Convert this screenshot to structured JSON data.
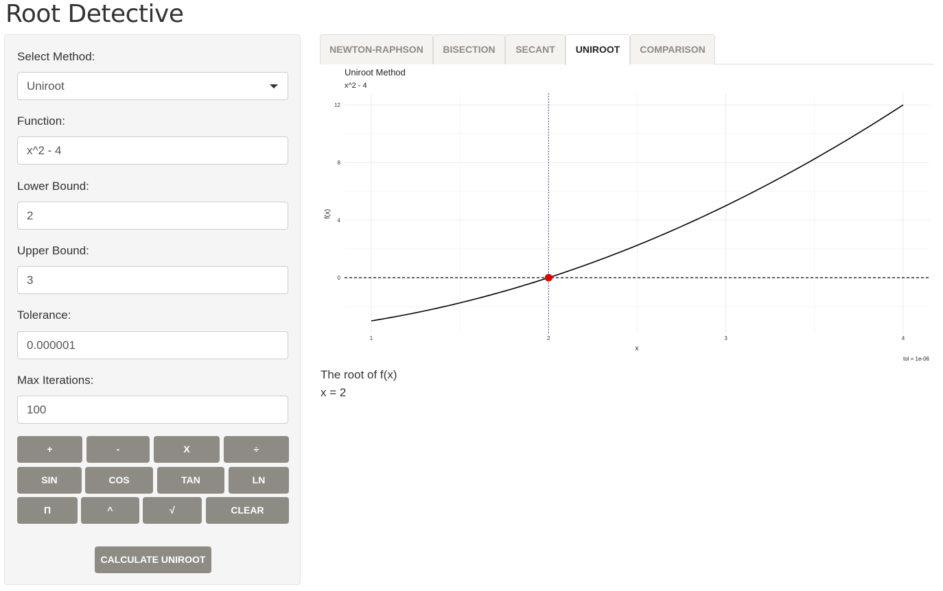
{
  "app": {
    "title": "Root Detective"
  },
  "sidebar": {
    "method_label": "Select Method:",
    "method_value": "Uniroot",
    "function_label": "Function:",
    "function_value": "x^2 - 4",
    "lower_label": "Lower Bound:",
    "lower_value": "2",
    "upper_label": "Upper Bound:",
    "upper_value": "3",
    "tolerance_label": "Tolerance:",
    "tolerance_value": "0.000001",
    "maxiter_label": "Max Iterations:",
    "maxiter_value": "100",
    "calc_rows": [
      [
        "+",
        "-",
        "X",
        "÷"
      ],
      [
        "SIN",
        "COS",
        "TAN",
        "LN"
      ],
      [
        "Π",
        "^",
        "√",
        "CLEAR"
      ]
    ],
    "calculate_label": "CALCULATE UNIROOT"
  },
  "tabs": [
    {
      "label": "NEWTON-RAPHSON",
      "active": false
    },
    {
      "label": "BISECTION",
      "active": false
    },
    {
      "label": "SECANT",
      "active": false
    },
    {
      "label": "UNIROOT",
      "active": true
    },
    {
      "label": "COMPARISON",
      "active": false
    }
  ],
  "chart_data": {
    "type": "line",
    "title": "Uniroot Method",
    "subtitle": "x^2 - 4",
    "xlabel": "x",
    "ylabel": "f(x)",
    "caption": "tol = 1e-06",
    "xlim": [
      1,
      4
    ],
    "ylim": [
      -3,
      12
    ],
    "x_ticks": [
      1,
      2,
      3,
      4
    ],
    "y_ticks": [
      0,
      4,
      8,
      12
    ],
    "series": [
      {
        "function": "x^2 - 4",
        "x_range": [
          1,
          4
        ],
        "color": "#000000"
      }
    ],
    "hline": {
      "y": 0,
      "style": "dashed",
      "color": "#000000"
    },
    "vline": {
      "x": 2,
      "style": "dotted",
      "color": "#6a5acd"
    },
    "root_point": {
      "x": 2,
      "y": 0,
      "color": "#e00000"
    },
    "grid": true
  },
  "result": {
    "label": "The root of f(x)",
    "value": "x = 2"
  }
}
